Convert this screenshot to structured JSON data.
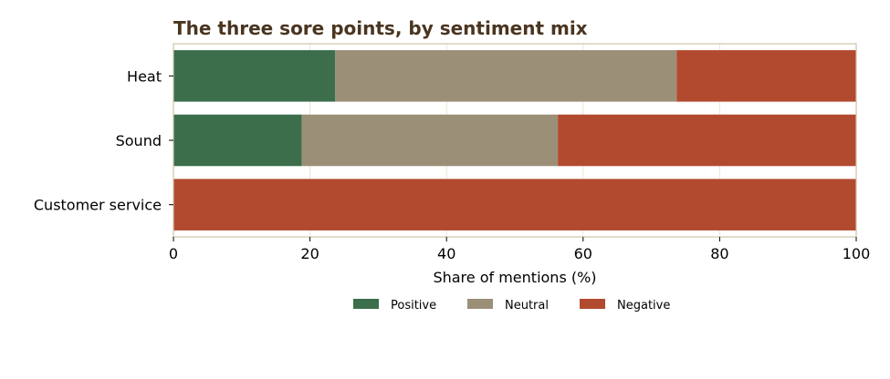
{
  "chart_data": {
    "type": "bar",
    "orientation": "horizontal",
    "stacked": true,
    "title": "The three sore points, by sentiment mix",
    "xlabel": "Share of mentions (%)",
    "ylabel": "",
    "xlim": [
      0,
      100
    ],
    "xticks": [
      "0",
      "20",
      "40",
      "60",
      "80",
      "100"
    ],
    "categories": [
      "Heat",
      "Sound",
      "Customer service"
    ],
    "series": [
      {
        "name": "Positive",
        "color": "#3c6e4b",
        "values": [
          23.7,
          18.8,
          0
        ]
      },
      {
        "name": "Neutral",
        "color": "#9b8f78",
        "values": [
          50.0,
          37.5,
          0
        ]
      },
      {
        "name": "Negative",
        "color": "#b24a30",
        "values": [
          26.3,
          43.7,
          100
        ]
      }
    ],
    "grid": "vertical",
    "legend_position": "bottom-center",
    "colors": {
      "title": "#4a3520",
      "frame": "#cfc4a8",
      "grid": "#efe6d2"
    }
  }
}
